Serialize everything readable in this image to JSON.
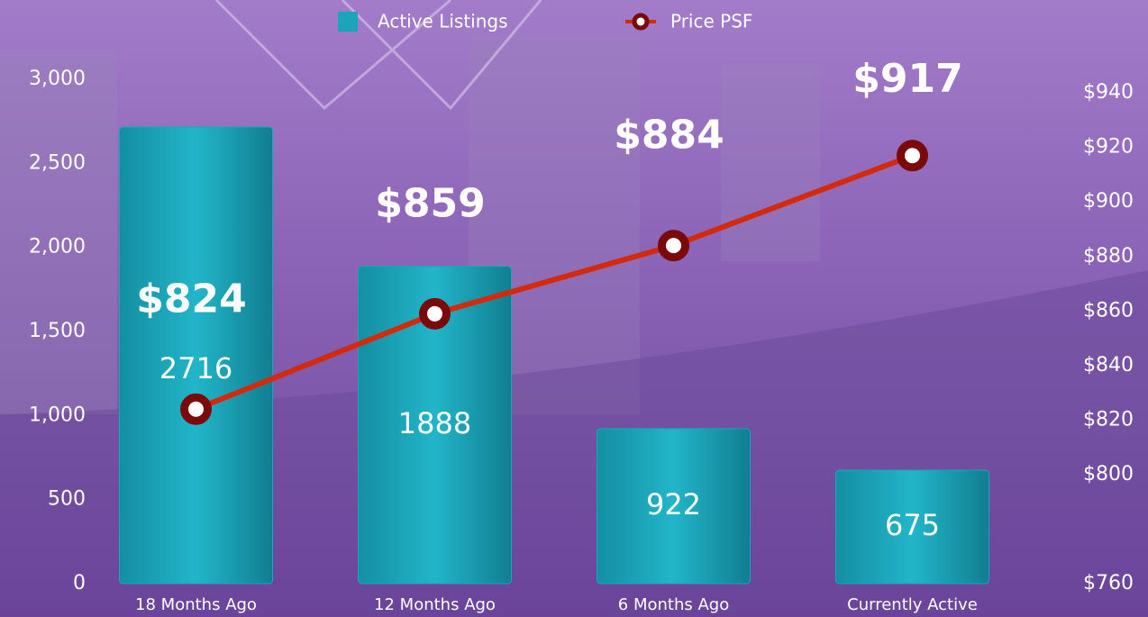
{
  "chart_data": {
    "type": "bar",
    "categories": [
      "18 Months Ago",
      "12 Months Ago",
      "6 Months Ago",
      "Currently Active"
    ],
    "series": [
      {
        "name": "Active Listings",
        "type": "bar",
        "color": "#1ba5bb",
        "values": [
          2716,
          1888,
          922,
          675
        ]
      },
      {
        "name": "Price PSF",
        "type": "line",
        "axis": "y2",
        "color": "#d42a0c",
        "marker_color": "#7a0a0a",
        "values": [
          824,
          859,
          884,
          917
        ],
        "value_labels": [
          "$824",
          "$859",
          "$884",
          "$917"
        ]
      }
    ],
    "ylim": [
      0,
      3000
    ],
    "yticks": [
      0,
      500,
      {
        "value": 1000,
        "label": "1,000"
      },
      {
        "value": 1500,
        "label": "1,500"
      },
      {
        "value": 2000,
        "label": "2,000"
      },
      {
        "value": 2500,
        "label": "2,500"
      },
      {
        "value": 3000,
        "label": "3,000"
      }
    ],
    "y2lim": [
      760,
      945
    ],
    "y2ticks": [
      {
        "value": 760,
        "label": "$760"
      },
      {
        "value": 800,
        "label": "$800"
      },
      {
        "value": 820,
        "label": "$820"
      },
      {
        "value": 840,
        "label": "$840"
      },
      {
        "value": 860,
        "label": "$860"
      },
      {
        "value": 880,
        "label": "$880"
      },
      {
        "value": 900,
        "label": "$900"
      },
      {
        "value": 920,
        "label": "$920"
      },
      {
        "value": 940,
        "label": "$940"
      }
    ],
    "legend": "top"
  }
}
